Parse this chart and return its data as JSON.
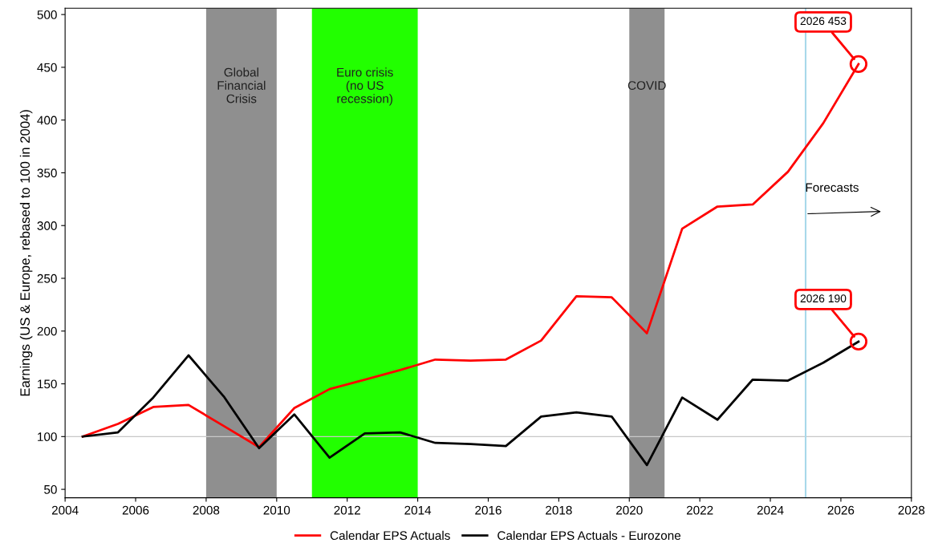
{
  "chart_data": {
    "type": "line",
    "ylabel": "Earnings (US & Europe, rebased to 100 in 2004)",
    "x": [
      2004.5,
      2005.5,
      2006.5,
      2007.5,
      2008.5,
      2009.5,
      2010.5,
      2011.5,
      2012.5,
      2013.5,
      2014.5,
      2015.5,
      2016.5,
      2017.5,
      2018.5,
      2019.5,
      2020.5,
      2021.5,
      2022.5,
      2023.5,
      2024.5,
      2025.5,
      2026.5
    ],
    "series": [
      {
        "name": "Calendar EPS Actuals",
        "color": "#ff0000",
        "values": [
          100,
          112,
          128,
          130,
          110,
          90,
          127,
          145,
          154,
          163,
          173,
          172,
          173,
          191,
          233,
          232,
          198,
          297,
          318,
          320,
          351,
          397,
          453
        ]
      },
      {
        "name": "Calendar EPS Actuals - Eurozone",
        "color": "#000000",
        "values": [
          100,
          104,
          137,
          177,
          138,
          89,
          121,
          80,
          103,
          104,
          94,
          93,
          91,
          119,
          123,
          119,
          73,
          137,
          116,
          154,
          153,
          170,
          190
        ]
      }
    ],
    "xlim": [
      2004,
      2028
    ],
    "xticks": [
      2004,
      2006,
      2008,
      2010,
      2012,
      2014,
      2016,
      2018,
      2020,
      2022,
      2024,
      2026,
      2028
    ],
    "ylim": [
      42,
      506
    ],
    "yticks": [
      50,
      100,
      150,
      200,
      250,
      300,
      350,
      400,
      450,
      500
    ],
    "grid": false,
    "legend": "bottom",
    "marker": "none",
    "line_style": "solid",
    "bands": [
      {
        "axis": "x",
        "from": 2008,
        "to": 2010,
        "label": "Global\nFinancial\nCrisis",
        "color": "#8f8f8f"
      },
      {
        "axis": "x",
        "from": 2011,
        "to": 2014,
        "label": "Euro crisis\n(no US\nrecession)",
        "color": "#22ff00"
      },
      {
        "axis": "x",
        "from": 2020,
        "to": 2021,
        "label": "COVID",
        "color": "#8f8f8f"
      }
    ],
    "ref_lines": [
      {
        "axis": "y",
        "value": 100,
        "color": "#c8c8c8"
      },
      {
        "axis": "x",
        "value": 2025,
        "color": "#a8d8ea"
      }
    ],
    "annotations": [
      {
        "text": "2026 453",
        "x": 2026.5,
        "y": 453
      },
      {
        "text": "2026 190",
        "x": 2026.5,
        "y": 190
      },
      "Forecasts"
    ]
  }
}
